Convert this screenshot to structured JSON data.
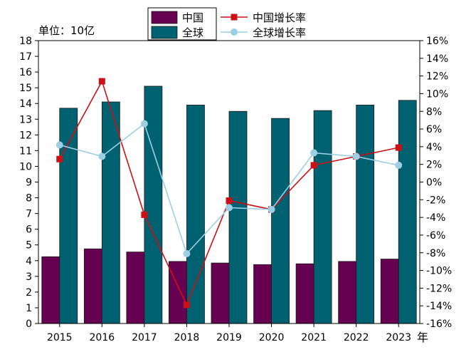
{
  "chart_data": {
    "type": "bar",
    "unit_label": "单位：10亿",
    "x_unit_label": "年",
    "categories": [
      "2015",
      "2016",
      "2017",
      "2018",
      "2019",
      "2020",
      "2021",
      "2022",
      "2023"
    ],
    "series": [
      {
        "name": "中国",
        "kind": "bar",
        "axis": "left",
        "color": "#660051",
        "values": [
          4.25,
          4.75,
          4.55,
          3.95,
          3.85,
          3.75,
          3.8,
          3.95,
          4.1
        ]
      },
      {
        "name": "全球",
        "kind": "bar",
        "axis": "left",
        "color": "#006270",
        "values": [
          13.7,
          14.1,
          15.1,
          13.9,
          13.5,
          13.05,
          13.55,
          13.9,
          14.2
        ]
      },
      {
        "name": "中国增长率",
        "kind": "line",
        "axis": "right",
        "color": "#cc1016",
        "marker": "square",
        "values": [
          2.6,
          11.4,
          -3.7,
          -13.9,
          -2.1,
          -3.1,
          1.9,
          2.9,
          3.9
        ]
      },
      {
        "name": "全球增长率",
        "kind": "line",
        "axis": "right",
        "color": "#9ccfe3",
        "marker": "circle",
        "values": [
          4.2,
          2.9,
          6.6,
          -8.1,
          -2.9,
          -3.1,
          3.3,
          2.9,
          1.9
        ]
      }
    ],
    "ylim_left": [
      0,
      18
    ],
    "yticks_left": [
      "0",
      "1",
      "2",
      "3",
      "4",
      "5",
      "6",
      "7",
      "8",
      "9",
      "10",
      "11",
      "12",
      "13",
      "14",
      "15",
      "16",
      "17",
      "18"
    ],
    "ylim_right": [
      -16,
      16
    ],
    "yticks_right": [
      "-16%",
      "-14%",
      "-12%",
      "-10%",
      "-8%",
      "-6%",
      "-4%",
      "-2%",
      "0%",
      "2%",
      "4%",
      "6%",
      "8%",
      "10%",
      "12%",
      "14%",
      "16%"
    ],
    "grid": false,
    "legend_position": "top-center"
  }
}
